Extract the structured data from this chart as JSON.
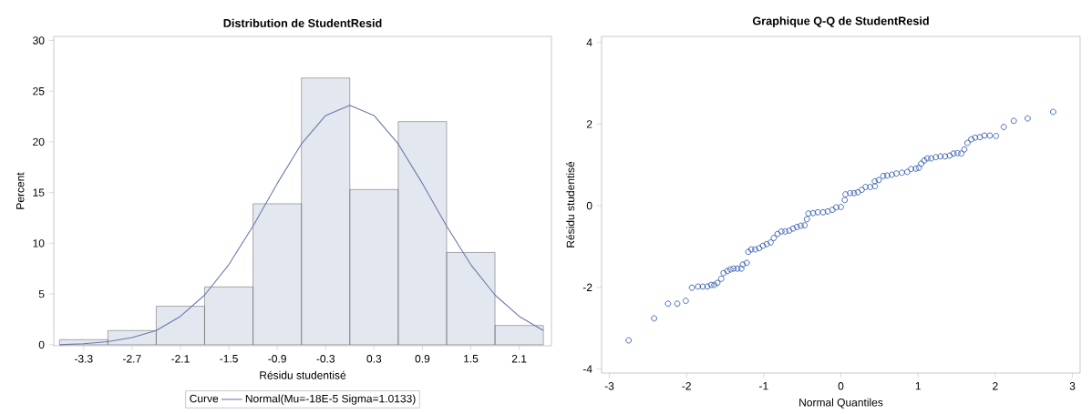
{
  "chart_data": [
    {
      "type": "histogram",
      "title": "Distribution de StudentResid",
      "xlabel": "Résidu studentisé",
      "ylabel": "Percent",
      "bins": [
        -3.6,
        -3.0,
        -2.4,
        -1.8,
        -1.2,
        -0.6,
        0.0,
        0.6,
        1.2,
        1.8,
        2.4
      ],
      "values": [
        0.5,
        1.4,
        3.8,
        5.7,
        13.9,
        26.3,
        15.3,
        22.0,
        9.1,
        1.9
      ],
      "color": "#e3e7f0",
      "xlim": [
        -3.67,
        2.5
      ],
      "ylim": [
        -0.1,
        30.4
      ],
      "xticks": [
        -3.3,
        -2.7,
        -2.1,
        -1.5,
        -0.9,
        -0.3,
        0.3,
        0.9,
        1.5,
        2.1
      ],
      "yticks": [
        0,
        5,
        10,
        15,
        20,
        25,
        30
      ],
      "legend": "bottom",
      "legend_title": "Curve",
      "series": [
        {
          "type": "line",
          "name": "Normal(Mu=-18E-5 Sigma=1.0133)",
          "color": "#6a78a8",
          "x": [
            -3.6,
            -3.3,
            -3.0,
            -2.7,
            -2.4,
            -2.1,
            -1.8,
            -1.5,
            -1.2,
            -0.9,
            -0.6,
            -0.3,
            0.0,
            0.3,
            0.6,
            0.9,
            1.2,
            1.5,
            1.8,
            2.1,
            2.4
          ],
          "values": [
            0.0,
            0.1,
            0.3,
            0.7,
            1.4,
            2.8,
            4.9,
            7.9,
            11.7,
            15.9,
            19.8,
            22.6,
            23.6,
            22.6,
            19.8,
            15.9,
            11.7,
            7.9,
            4.9,
            2.8,
            1.4
          ]
        }
      ]
    },
    {
      "type": "scatter",
      "title": "Graphique Q-Q de StudentResid",
      "xlabel": "Normal Quantiles",
      "ylabel": "Résidu studentisé",
      "x": [
        -2.75,
        -2.42,
        -2.24,
        -2.12,
        -2.01,
        -1.93,
        -1.85,
        -1.79,
        -1.73,
        -1.68,
        -1.64,
        -1.6,
        -1.55,
        -1.52,
        -1.47,
        -1.43,
        -1.39,
        -1.34,
        -1.29,
        -1.27,
        -1.22,
        -1.2,
        -1.16,
        -1.11,
        -1.06,
        -1.01,
        -0.96,
        -0.91,
        -0.87,
        -0.82,
        -0.77,
        -0.72,
        -0.67,
        -0.62,
        -0.57,
        -0.52,
        -0.47,
        -0.44,
        -0.42,
        -0.36,
        -0.3,
        -0.23,
        -0.17,
        -0.11,
        -0.06,
        0.0,
        0.05,
        0.06,
        0.12,
        0.17,
        0.22,
        0.27,
        0.32,
        0.38,
        0.44,
        0.44,
        0.49,
        0.55,
        0.6,
        0.66,
        0.72,
        0.79,
        0.86,
        0.91,
        0.97,
        1.01,
        1.04,
        1.08,
        1.12,
        1.17,
        1.23,
        1.29,
        1.35,
        1.41,
        1.46,
        1.51,
        1.56,
        1.6,
        1.64,
        1.69,
        1.74,
        1.8,
        1.86,
        1.93,
        2.01,
        2.11,
        2.24,
        2.42,
        2.75
      ],
      "values": [
        -3.3,
        -2.76,
        -2.4,
        -2.4,
        -2.33,
        -2.01,
        -1.98,
        -1.98,
        -1.98,
        -1.94,
        -1.94,
        -1.89,
        -1.79,
        -1.65,
        -1.6,
        -1.56,
        -1.54,
        -1.54,
        -1.54,
        -1.44,
        -1.4,
        -1.13,
        -1.07,
        -1.07,
        -1.04,
        -0.98,
        -0.94,
        -0.9,
        -0.79,
        -0.69,
        -0.63,
        -0.63,
        -0.61,
        -0.56,
        -0.52,
        -0.49,
        -0.48,
        -0.33,
        -0.19,
        -0.18,
        -0.16,
        -0.16,
        -0.14,
        -0.1,
        -0.04,
        -0.03,
        0.14,
        0.28,
        0.31,
        0.31,
        0.33,
        0.39,
        0.46,
        0.46,
        0.48,
        0.6,
        0.63,
        0.73,
        0.74,
        0.76,
        0.79,
        0.81,
        0.83,
        0.9,
        0.91,
        0.93,
        1.03,
        1.11,
        1.16,
        1.16,
        1.19,
        1.21,
        1.21,
        1.23,
        1.28,
        1.29,
        1.28,
        1.38,
        1.54,
        1.63,
        1.67,
        1.68,
        1.72,
        1.72,
        1.71,
        1.93,
        2.08,
        2.14,
        2.3
      ],
      "color": "#1f4ba5",
      "marker": "circle",
      "xlim": [
        -3.1,
        3.1
      ],
      "ylim": [
        -4.1,
        4.15
      ],
      "xticks": [
        -3,
        -2,
        -1,
        0,
        1,
        2,
        3
      ],
      "yticks": [
        -4,
        -2,
        0,
        2,
        4
      ]
    }
  ]
}
